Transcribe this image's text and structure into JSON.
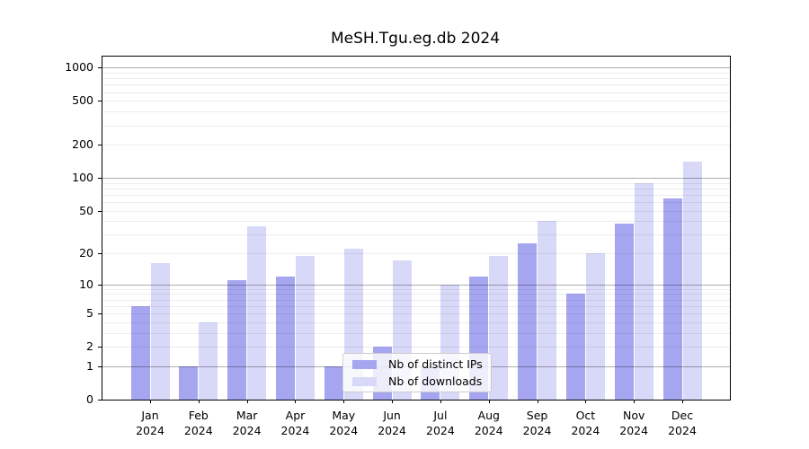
{
  "chart_data": {
    "type": "bar",
    "title": "MeSH.Tgu.eg.db 2024",
    "categories": [
      "Jan 2024",
      "Feb 2024",
      "Mar 2024",
      "Apr 2024",
      "May 2024",
      "Jun 2024",
      "Jul 2024",
      "Aug 2024",
      "Sep 2024",
      "Oct 2024",
      "Nov 2024",
      "Dec 2024"
    ],
    "series": [
      {
        "name": "Nb of distinct IPs",
        "color": "#a6a6f0",
        "values": [
          6,
          1,
          11,
          12,
          1,
          2,
          1,
          12,
          25,
          8,
          38,
          65
        ]
      },
      {
        "name": "Nb of downloads",
        "color": "#d8d8f8",
        "values": [
          16,
          4,
          36,
          19,
          22,
          17,
          10,
          19,
          40,
          20,
          90,
          140
        ]
      }
    ],
    "xlabel": "",
    "ylabel": "",
    "y_scale": "log1p",
    "y_ticks": [
      0,
      1,
      2,
      5,
      10,
      20,
      50,
      100,
      200,
      500,
      1000
    ],
    "y_minor_gridlines": [
      2,
      3,
      4,
      5,
      6,
      7,
      8,
      9,
      20,
      30,
      40,
      50,
      60,
      70,
      80,
      90,
      200,
      300,
      400,
      500,
      600,
      700,
      800,
      900
    ],
    "y_major_gridlines": [
      1,
      10,
      100,
      1000
    ],
    "ylim": [
      0,
      1275
    ],
    "grid": true,
    "legend_position": "lower center-right (over Jul bars)"
  },
  "colors": {
    "bar_distinct_ips": "#a6a6f0",
    "bar_downloads": "#d8d8f8",
    "major_gridline": "#aaaaaa",
    "minor_gridline": "#ececec",
    "axis": "#000000",
    "legend_border": "#cccccc",
    "background": "#ffffff"
  }
}
